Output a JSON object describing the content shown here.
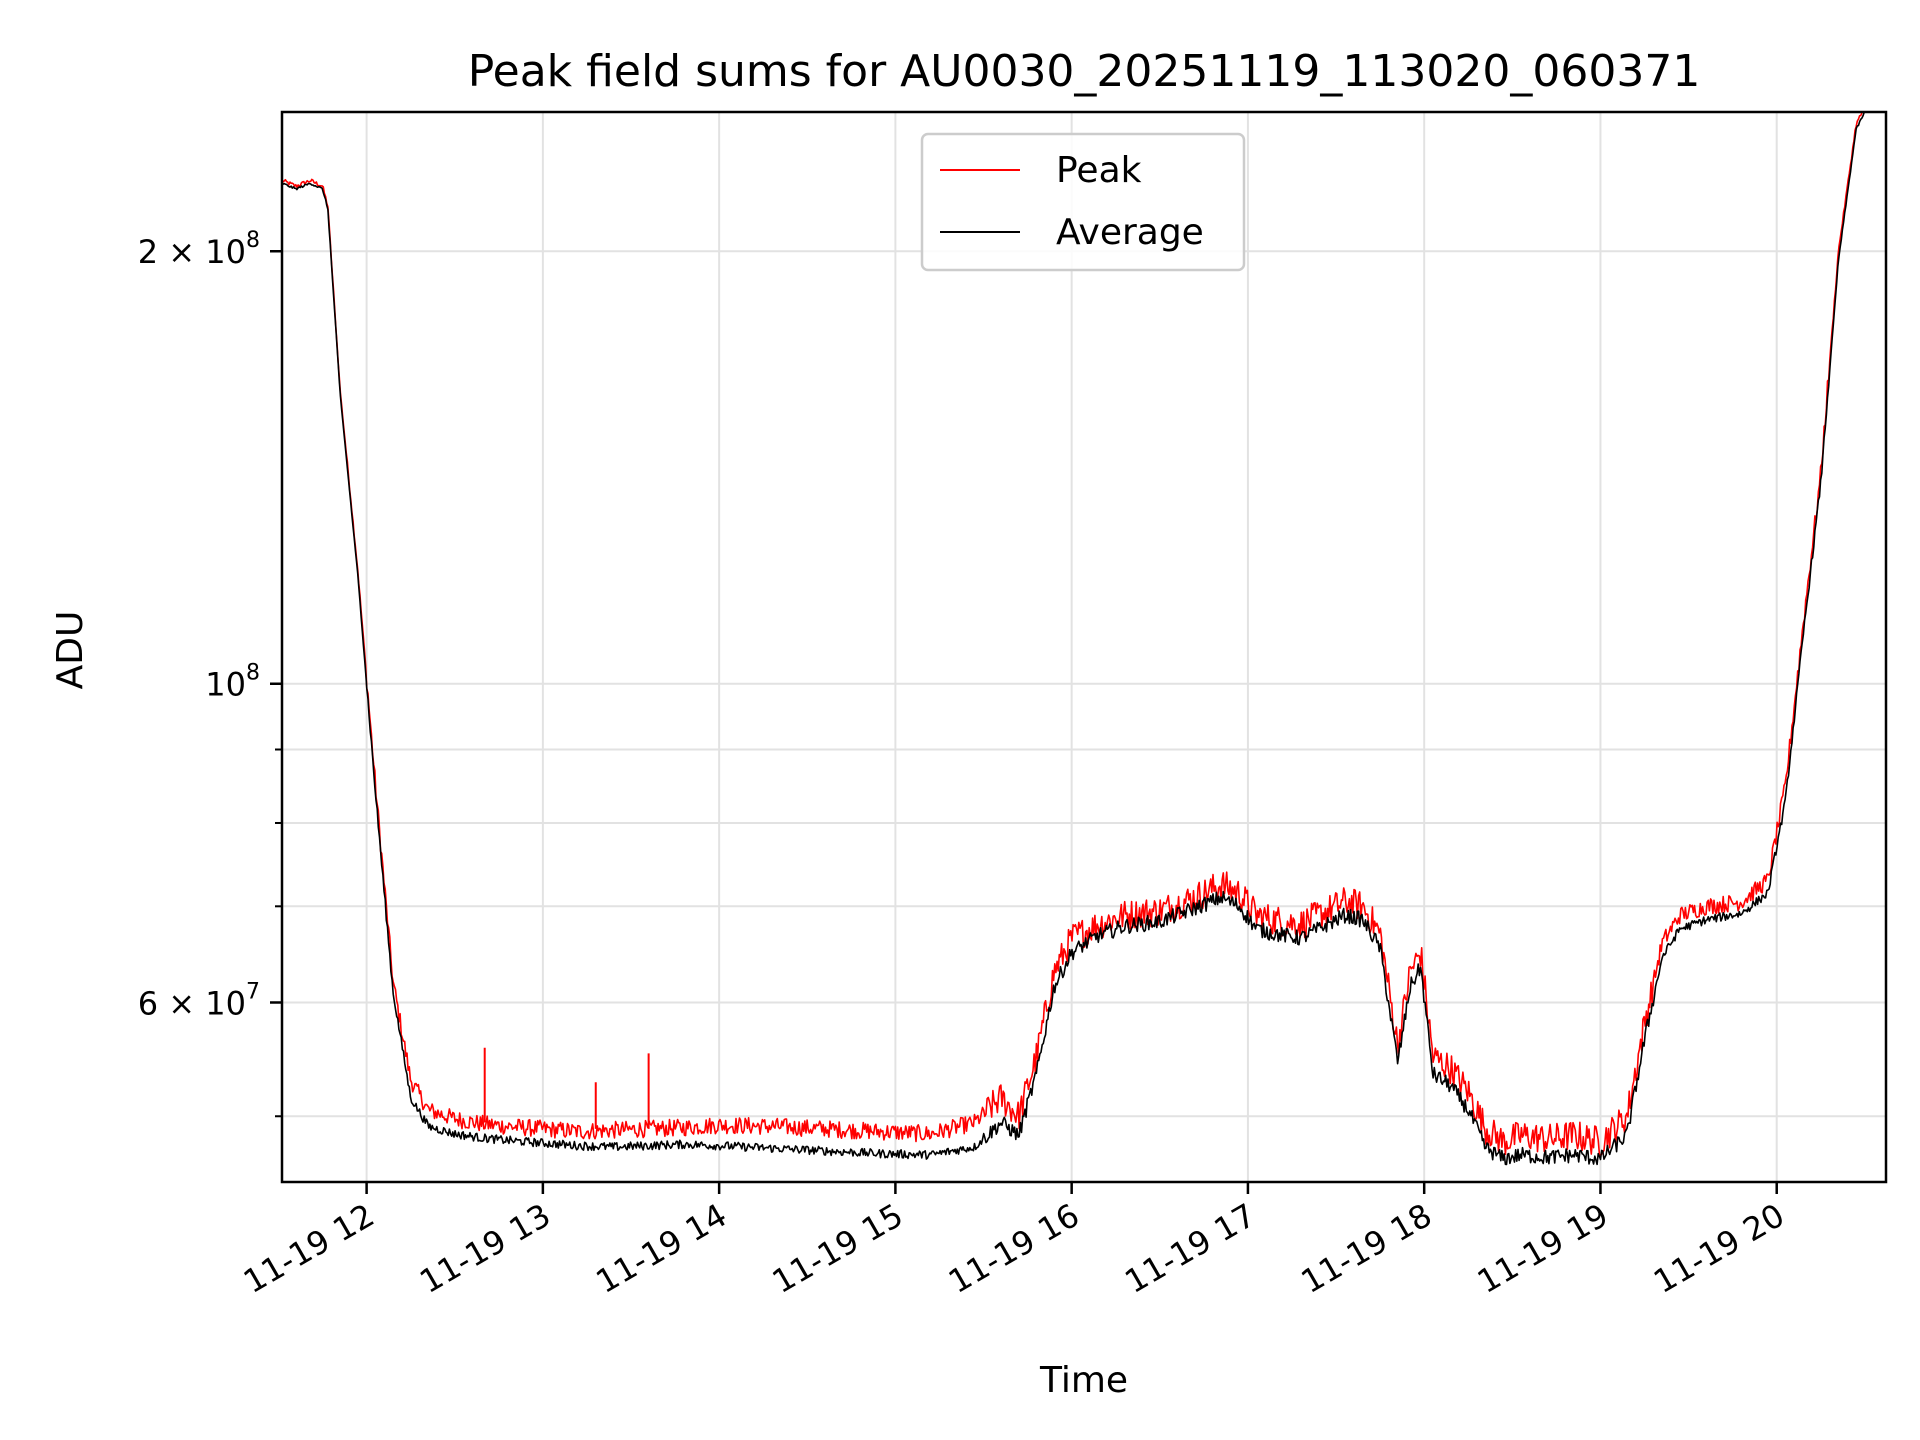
{
  "chart_data": {
    "type": "line",
    "title": "Peak field sums for AU0030_20251119_113020_060371",
    "xlabel": "Time",
    "ylabel": "ADU",
    "yscale": "log",
    "ylim": [
      45000000,
      250000000
    ],
    "xlim": [
      11.52,
      20.62
    ],
    "grid": true,
    "legend_position": "top-center",
    "x_ticks": [
      {
        "value": 12,
        "label": "11-19 12"
      },
      {
        "value": 13,
        "label": "11-19 13"
      },
      {
        "value": 14,
        "label": "11-19 14"
      },
      {
        "value": 15,
        "label": "11-19 15"
      },
      {
        "value": 16,
        "label": "11-19 16"
      },
      {
        "value": 17,
        "label": "11-19 17"
      },
      {
        "value": 18,
        "label": "11-19 18"
      },
      {
        "value": 19,
        "label": "11-19 19"
      },
      {
        "value": 20,
        "label": "11-19 20"
      }
    ],
    "y_ticks": [
      {
        "value": 200000000,
        "base": "2 × 10",
        "exp": "8"
      },
      {
        "value": 100000000,
        "base": "10",
        "exp": "8"
      },
      {
        "value": 60000000,
        "base": "6 × 10",
        "exp": "7"
      }
    ],
    "y_minor_ticks": [
      50000000,
      70000000,
      80000000,
      90000000
    ],
    "series": [
      {
        "name": "Peak",
        "color": "#ff0000",
        "x": [
          11.52,
          11.6,
          11.68,
          11.75,
          11.78,
          11.85,
          11.95,
          12.05,
          12.15,
          12.25,
          12.35,
          12.5,
          12.65,
          12.8,
          13.0,
          13.2,
          13.4,
          13.6,
          13.8,
          14.0,
          14.3,
          14.6,
          14.9,
          15.2,
          15.45,
          15.6,
          15.7,
          15.8,
          15.9,
          16.0,
          16.15,
          16.3,
          16.5,
          16.7,
          16.85,
          16.95,
          17.05,
          17.15,
          17.3,
          17.45,
          17.55,
          17.65,
          17.75,
          17.85,
          17.92,
          17.98,
          18.05,
          18.15,
          18.25,
          18.35,
          18.45,
          18.55,
          18.7,
          18.85,
          19.0,
          19.15,
          19.25,
          19.35,
          19.45,
          19.6,
          19.8,
          19.95,
          20.05,
          20.15,
          20.25,
          20.35,
          20.45,
          20.52
        ],
        "y": [
          224000000,
          222000000,
          224000000,
          222000000,
          215000000,
          160000000,
          120000000,
          85000000,
          62000000,
          53000000,
          50500000,
          49800000,
          49400000,
          49200000,
          49000000,
          48800000,
          48900000,
          49000000,
          49100000,
          49300000,
          49200000,
          49000000,
          48800000,
          48600000,
          49500000,
          51500000,
          50000000,
          55000000,
          63000000,
          66500000,
          68000000,
          69000000,
          69500000,
          71000000,
          72500000,
          71500000,
          69000000,
          68500000,
          68000000,
          69500000,
          70500000,
          70000000,
          67000000,
          56000000,
          63000000,
          65000000,
          55000000,
          54000000,
          52000000,
          49000000,
          48000000,
          48500000,
          48200000,
          48500000,
          48000000,
          50000000,
          58000000,
          66000000,
          69000000,
          70000000,
          70500000,
          73000000,
          85000000,
          110000000,
          140000000,
          200000000,
          245000000,
          255000000
        ]
      },
      {
        "name": "Average",
        "color": "#000000",
        "x": [
          11.52,
          11.6,
          11.68,
          11.75,
          11.78,
          11.85,
          11.95,
          12.05,
          12.15,
          12.25,
          12.35,
          12.5,
          12.65,
          12.8,
          13.0,
          13.2,
          13.4,
          13.6,
          13.8,
          14.0,
          14.3,
          14.6,
          14.9,
          15.2,
          15.45,
          15.6,
          15.7,
          15.8,
          15.9,
          16.0,
          16.15,
          16.3,
          16.5,
          16.7,
          16.85,
          16.95,
          17.05,
          17.15,
          17.3,
          17.45,
          17.55,
          17.65,
          17.75,
          17.85,
          17.92,
          17.98,
          18.05,
          18.15,
          18.25,
          18.35,
          18.45,
          18.55,
          18.7,
          18.85,
          19.0,
          19.15,
          19.25,
          19.35,
          19.45,
          19.6,
          19.8,
          19.95,
          20.05,
          20.15,
          20.25,
          20.35,
          20.45,
          20.52
        ],
        "y": [
          223000000,
          221000000,
          223000000,
          221000000,
          214000000,
          159000000,
          119000000,
          84000000,
          61000000,
          51500000,
          49200000,
          48600000,
          48300000,
          48100000,
          47900000,
          47700000,
          47600000,
          47700000,
          47800000,
          47700000,
          47500000,
          47300000,
          47100000,
          47000000,
          47600000,
          49500000,
          48500000,
          53500000,
          61500000,
          65000000,
          66800000,
          67800000,
          68300000,
          69800000,
          71000000,
          70000000,
          67500000,
          67000000,
          66500000,
          68000000,
          69000000,
          68500000,
          65500000,
          54500000,
          61500000,
          63500000,
          53500000,
          52500000,
          50500000,
          47500000,
          46700000,
          47000000,
          46800000,
          47000000,
          46700000,
          48500000,
          56500000,
          64500000,
          67500000,
          68500000,
          69200000,
          71500000,
          83000000,
          108000000,
          138000000,
          197000000,
          243000000,
          253000000
        ]
      }
    ],
    "spikes": [
      {
        "series": "Peak",
        "x": 12.67,
        "base": 49500000,
        "top": 55800000
      },
      {
        "series": "Peak",
        "x": 13.3,
        "base": 49000000,
        "top": 52800000
      },
      {
        "series": "Peak",
        "x": 13.6,
        "base": 49000000,
        "top": 55300000
      }
    ]
  }
}
